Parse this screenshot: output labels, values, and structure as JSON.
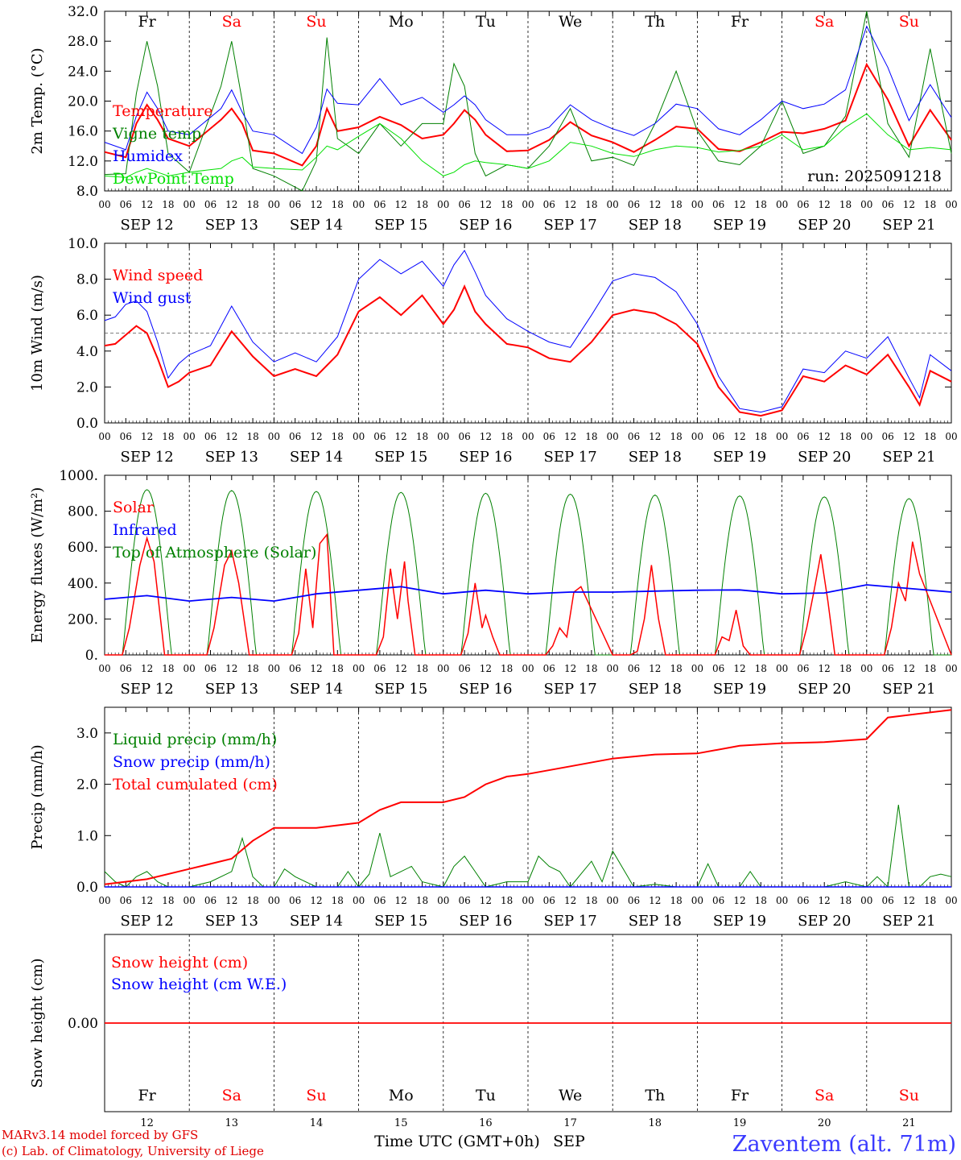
{
  "footer": {
    "credit_line1": "MARv3.14 model forced by GFS",
    "credit_line2": "(c) Lab. of Climatology, University of Liege",
    "time_axis_label": "Time UTC (GMT+0h)",
    "month_label": "SEP",
    "station": "Zaventem (alt. 71m)"
  },
  "colors": {
    "red": "#ff0000",
    "green": "#008000",
    "blue": "#0000ff",
    "lightgreen": "#00e000",
    "dark_green": "#00aa00"
  },
  "chart_data": [
    {
      "type": "line",
      "ylabel": "2m Temp. (°C)",
      "ylim": [
        8,
        32
      ],
      "yticks": [
        "8.0",
        "12.0",
        "16.0",
        "20.0",
        "24.0",
        "28.0",
        "32.0"
      ],
      "day_names": [
        "Fr",
        "Sa",
        "Su",
        "Mo",
        "Tu",
        "We",
        "Th",
        "Fr",
        "Sa",
        "Su"
      ],
      "date_labels": [
        "SEP 12",
        "SEP 13",
        "SEP 14",
        "SEP 15",
        "SEP 16",
        "SEP 17",
        "SEP 18",
        "SEP 19",
        "SEP 20",
        "SEP 21"
      ],
      "hour_ticks": [
        "00",
        "06",
        "12",
        "18"
      ],
      "annotation": "run: 2025091218",
      "x_hours": [
        0,
        6,
        9,
        12,
        15,
        18,
        24,
        33,
        36,
        39,
        42,
        48,
        56,
        60,
        63,
        66,
        72,
        78,
        84,
        90,
        96,
        99,
        102,
        105,
        108,
        114,
        120,
        126,
        132,
        138,
        144,
        150,
        156,
        162,
        168,
        174,
        180,
        186,
        192,
        198,
        204,
        210,
        216,
        222,
        228,
        234,
        240
      ],
      "series": [
        {
          "name": "Temperature",
          "color": "red",
          "values": [
            13.2,
            12.5,
            17,
            19.5,
            17.5,
            15,
            14,
            17.5,
            19,
            17,
            13.4,
            13.0,
            11.4,
            14,
            19,
            16,
            16.5,
            17.9,
            16.8,
            15,
            15.5,
            17,
            18.8,
            17.5,
            15.5,
            13.3,
            13.4,
            14.8,
            17.2,
            15.4,
            14.5,
            13.2,
            14.8,
            16.6,
            16.3,
            13.6,
            13.3,
            14.5,
            15.9,
            15.7,
            16.3,
            17.4,
            24.9,
            20.2,
            14.0,
            18.8,
            14.8
          ]
        },
        {
          "name": "Vigne temp",
          "color": "green",
          "values": [
            10.2,
            10.3,
            21,
            28,
            22,
            13.0,
            10.5,
            22,
            28,
            20,
            11,
            10,
            8,
            12,
            28.5,
            15,
            13,
            17,
            14,
            17,
            17,
            25,
            22,
            13,
            10,
            11.5,
            11,
            14,
            19,
            12,
            12.5,
            11.4,
            17,
            24,
            16,
            12,
            11.5,
            14,
            20,
            13,
            14,
            18,
            32,
            17,
            12.5,
            27,
            13
          ]
        },
        {
          "name": "Humidex",
          "color": "blue",
          "values": [
            14.5,
            13.5,
            18,
            21.2,
            19,
            16,
            15.5,
            19,
            21.5,
            18.5,
            16,
            15.5,
            13,
            16.5,
            21.6,
            19.7,
            19.5,
            23,
            19.5,
            20.5,
            18.5,
            19.5,
            20.7,
            19.5,
            17.5,
            15.5,
            15.5,
            16.5,
            19.5,
            17.5,
            16.3,
            15.4,
            17,
            19.6,
            19,
            16.3,
            15.5,
            17.5,
            20,
            19,
            19.6,
            21.5,
            30,
            24.5,
            17.4,
            22.2,
            17.8
          ]
        },
        {
          "name": "DewPoint Temp",
          "color": "lightgreen",
          "values": [
            10.0,
            9.8,
            10.5,
            11.0,
            10.5,
            10.0,
            10.5,
            11.0,
            12.0,
            12.5,
            11.2,
            11.0,
            10.8,
            12.5,
            14.0,
            13.5,
            15.3,
            17.0,
            15.0,
            12.0,
            10.0,
            10.5,
            11.5,
            12.0,
            11.8,
            11.5,
            11.0,
            12.0,
            14.5,
            14.0,
            13.0,
            12.6,
            13.5,
            14.0,
            13.8,
            13.2,
            13.4,
            14.0,
            15.5,
            13.5,
            14.0,
            16.5,
            18.3,
            15.5,
            13.5,
            13.8,
            13.5
          ]
        }
      ]
    },
    {
      "type": "line",
      "ylabel": "10m Wind (m/s)",
      "ylim": [
        0,
        10
      ],
      "yticks": [
        "0.0",
        "2.0",
        "4.0",
        "6.0",
        "8.0",
        "10.0"
      ],
      "date_labels": [
        "SEP 12",
        "SEP 13",
        "SEP 14",
        "SEP 15",
        "SEP 16",
        "SEP 17",
        "SEP 18",
        "SEP 19",
        "SEP 20",
        "SEP 21"
      ],
      "hour_ticks": [
        "00",
        "06",
        "12",
        "18"
      ],
      "reference_line": 5.0,
      "x_hours": [
        0,
        3,
        6,
        9,
        12,
        15,
        18,
        21,
        24,
        30,
        36,
        42,
        48,
        54,
        60,
        66,
        72,
        78,
        84,
        90,
        96,
        99,
        102,
        105,
        108,
        114,
        120,
        126,
        132,
        138,
        144,
        150,
        156,
        162,
        168,
        174,
        180,
        186,
        192,
        198,
        204,
        210,
        216,
        222,
        228,
        231,
        234,
        240
      ],
      "series": [
        {
          "name": "Wind speed",
          "color": "red",
          "values": [
            4.3,
            4.4,
            4.9,
            5.4,
            5.0,
            3.6,
            2.0,
            2.3,
            2.8,
            3.2,
            5.1,
            3.7,
            2.6,
            3.0,
            2.6,
            3.8,
            6.2,
            7.0,
            6.0,
            7.1,
            5.5,
            6.3,
            7.6,
            6.2,
            5.5,
            4.4,
            4.2,
            3.6,
            3.4,
            4.5,
            6.0,
            6.3,
            6.1,
            5.5,
            4.4,
            2.0,
            0.6,
            0.4,
            0.7,
            2.6,
            2.3,
            3.2,
            2.7,
            3.8,
            2.0,
            1.0,
            2.9,
            2.3
          ]
        },
        {
          "name": "Wind gust",
          "color": "blue",
          "values": [
            5.7,
            5.9,
            6.6,
            6.8,
            6.2,
            4.5,
            2.5,
            3.3,
            3.8,
            4.3,
            6.5,
            4.5,
            3.4,
            3.9,
            3.4,
            4.8,
            8.0,
            9.1,
            8.3,
            9.0,
            7.6,
            8.8,
            9.6,
            8.4,
            7.1,
            5.8,
            5.1,
            4.5,
            4.2,
            6.0,
            7.9,
            8.3,
            8.1,
            7.3,
            5.5,
            2.6,
            0.8,
            0.6,
            0.9,
            3.0,
            2.8,
            4.0,
            3.6,
            4.8,
            2.5,
            1.4,
            3.8,
            2.9
          ]
        }
      ]
    },
    {
      "type": "line",
      "ylabel": "Energy fluxes (W/m²)",
      "ylim": [
        0,
        1000
      ],
      "yticks": [
        "0.",
        "200.",
        "400.",
        "600.",
        "800.",
        "1000."
      ],
      "date_labels": [
        "SEP 12",
        "SEP 13",
        "SEP 14",
        "SEP 15",
        "SEP 16",
        "SEP 17",
        "SEP 18",
        "SEP 19",
        "SEP 20",
        "SEP 21"
      ],
      "hour_ticks": [
        "00",
        "06",
        "12",
        "18"
      ],
      "toa_peaks": [
        920,
        915,
        910,
        905,
        900,
        895,
        890,
        885,
        880,
        870
      ],
      "solar_x_hours": [
        0,
        5,
        7,
        10,
        12,
        14,
        17,
        24,
        29,
        31,
        34,
        36,
        38,
        41,
        48,
        53,
        55,
        57,
        59,
        61,
        63,
        65,
        72,
        77,
        79,
        81,
        83,
        85,
        86,
        88,
        96,
        101,
        103,
        105,
        107,
        108,
        110,
        112,
        120,
        125,
        127,
        129,
        131,
        133,
        135,
        144,
        149,
        151,
        153,
        155,
        157,
        159,
        168,
        173,
        175,
        177,
        179,
        181,
        183,
        192,
        197,
        199,
        201,
        203,
        205,
        207,
        216,
        221,
        223,
        225,
        227,
        229,
        231,
        240
      ],
      "series": [
        {
          "name": "Solar",
          "color": "red",
          "values": [
            0,
            0,
            150,
            500,
            650,
            520,
            0,
            0,
            0,
            150,
            500,
            580,
            400,
            0,
            0,
            0,
            120,
            480,
            150,
            620,
            670,
            0,
            0,
            0,
            100,
            480,
            200,
            520,
            300,
            0,
            0,
            0,
            120,
            400,
            150,
            220,
            100,
            0,
            0,
            0,
            50,
            150,
            100,
            350,
            380,
            0,
            0,
            20,
            200,
            500,
            200,
            0,
            0,
            0,
            100,
            80,
            250,
            50,
            0,
            0,
            0,
            150,
            350,
            560,
            300,
            0,
            0,
            0,
            150,
            400,
            300,
            630,
            450,
            0
          ]
        },
        {
          "name": "Infrared",
          "color": "blue",
          "x_hours": [
            0,
            12,
            24,
            36,
            48,
            60,
            72,
            84,
            96,
            108,
            120,
            132,
            144,
            156,
            168,
            180,
            192,
            204,
            216,
            228,
            240
          ],
          "values": [
            310,
            330,
            300,
            320,
            300,
            340,
            360,
            380,
            340,
            360,
            340,
            350,
            350,
            355,
            360,
            362,
            340,
            345,
            390,
            370,
            350
          ]
        },
        {
          "name": "Top of Atmosphere (Solar)",
          "color": "green"
        }
      ]
    },
    {
      "type": "line",
      "ylabel": "Precip (mm/h)",
      "ylim": [
        0,
        3.5
      ],
      "yticks": [
        "0.0",
        "1.0",
        "2.0",
        "3.0"
      ],
      "date_labels": [
        "SEP 12",
        "SEP 13",
        "SEP 14",
        "SEP 15",
        "SEP 16",
        "SEP 17",
        "SEP 18",
        "SEP 19",
        "SEP 20",
        "SEP 21"
      ],
      "hour_ticks": [
        "00",
        "06",
        "12",
        "18"
      ],
      "series": [
        {
          "name": "Liquid precip (mm/h)",
          "color": "green",
          "x_hours": [
            0,
            3,
            6,
            9,
            12,
            15,
            18,
            24,
            30,
            36,
            39,
            42,
            45,
            48,
            51,
            54,
            60,
            66,
            69,
            72,
            75,
            78,
            81,
            84,
            87,
            90,
            96,
            99,
            102,
            105,
            108,
            114,
            120,
            123,
            126,
            129,
            132,
            138,
            141,
            144,
            150,
            156,
            162,
            168,
            171,
            174,
            180,
            183,
            186,
            192,
            198,
            204,
            210,
            216,
            219,
            222,
            225,
            228,
            231,
            234,
            237,
            240
          ],
          "values": [
            0.3,
            0.1,
            0.0,
            0.2,
            0.3,
            0.1,
            0.0,
            0.0,
            0.1,
            0.3,
            0.95,
            0.2,
            0.0,
            0.0,
            0.35,
            0.2,
            0.0,
            0.0,
            0.3,
            0.0,
            0.25,
            1.05,
            0.2,
            0.3,
            0.4,
            0.1,
            0.0,
            0.4,
            0.6,
            0.3,
            0.0,
            0.1,
            0.1,
            0.6,
            0.4,
            0.3,
            0.0,
            0.5,
            0.1,
            0.7,
            0.0,
            0.05,
            0.0,
            0.0,
            0.45,
            0.0,
            0.0,
            0.3,
            0.0,
            0.0,
            0.0,
            0.0,
            0.1,
            0.0,
            0.2,
            0.0,
            1.6,
            0.0,
            0.0,
            0.2,
            0.25,
            0.2
          ]
        },
        {
          "name": "Snow precip (mm/h)",
          "color": "blue"
        },
        {
          "name": "Total cumulated (cm)",
          "color": "red",
          "x_hours": [
            0,
            12,
            24,
            36,
            42,
            48,
            60,
            72,
            78,
            84,
            96,
            102,
            108,
            114,
            120,
            132,
            144,
            156,
            168,
            180,
            192,
            204,
            216,
            222,
            240
          ],
          "values": [
            0.05,
            0.15,
            0.35,
            0.55,
            0.9,
            1.15,
            1.15,
            1.25,
            1.5,
            1.65,
            1.65,
            1.75,
            2.0,
            2.15,
            2.2,
            2.35,
            2.5,
            2.58,
            2.6,
            2.75,
            2.8,
            2.82,
            2.88,
            3.3,
            3.45
          ]
        }
      ]
    },
    {
      "type": "line",
      "ylabel": "Snow height (cm)",
      "yticks": [
        "0.00"
      ],
      "day_names": [
        "Fr",
        "Sa",
        "Su",
        "Mo",
        "Tu",
        "We",
        "Th",
        "Fr",
        "Sa",
        "Su"
      ],
      "day_numbers": [
        "12",
        "13",
        "14",
        "15",
        "16",
        "17",
        "18",
        "19",
        "20",
        "21"
      ],
      "series": [
        {
          "name": "Snow height (cm)",
          "color": "red",
          "values": [
            0,
            0
          ]
        },
        {
          "name": "Snow height (cm W.E.)",
          "color": "blue"
        }
      ]
    }
  ]
}
